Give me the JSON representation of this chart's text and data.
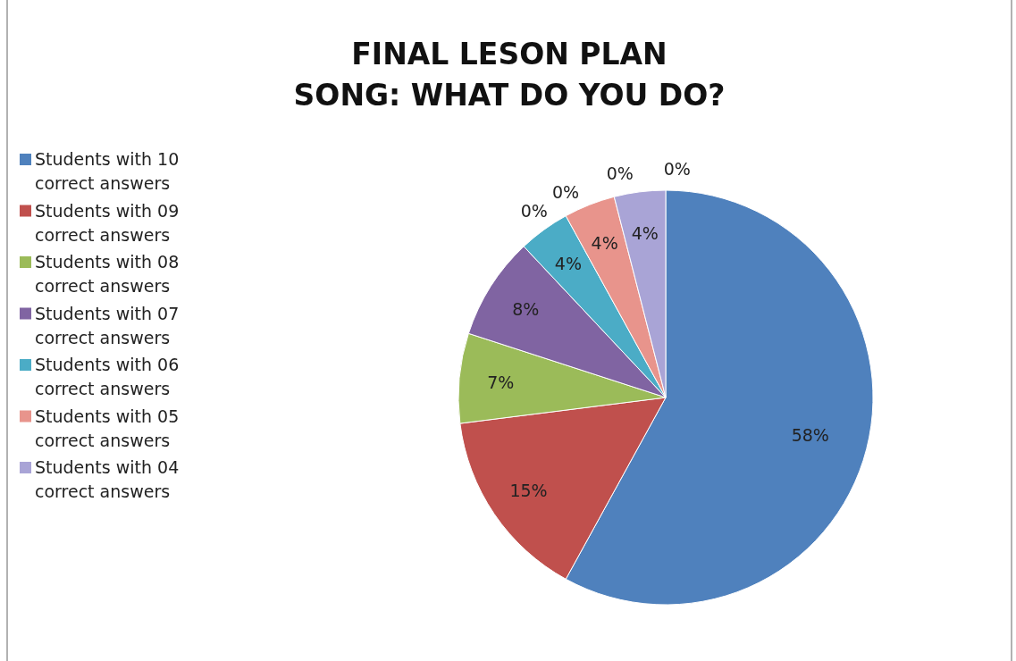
{
  "chart_data": {
    "type": "pie",
    "title": "FINAL LESON PLAN\nSONG: WHAT DO YOU DO?",
    "categories": [
      "Students with 10 correct answers",
      "Students with  09 correct answers",
      "Students with  08 correct answers",
      "Students with  07 correct answers",
      "Students with  06 correct answers",
      null,
      null,
      "Students with  05 correct answers",
      null,
      "Students with  04 correct answers",
      null
    ],
    "values": [
      58,
      15,
      7,
      8,
      4,
      0,
      0,
      4,
      0,
      4,
      0
    ],
    "value_labels": [
      "58%",
      "15%",
      "7%",
      "8%",
      "4%",
      "0%",
      "0%",
      "4%",
      "0%",
      "4%",
      "0%"
    ],
    "colors": [
      "#4f81bd",
      "#c0504d",
      "#9bbb59",
      "#8064a2",
      "#4bacc6",
      null,
      null,
      "#e8948c",
      null,
      "#a9a4d6",
      null
    ],
    "legend": "left"
  }
}
